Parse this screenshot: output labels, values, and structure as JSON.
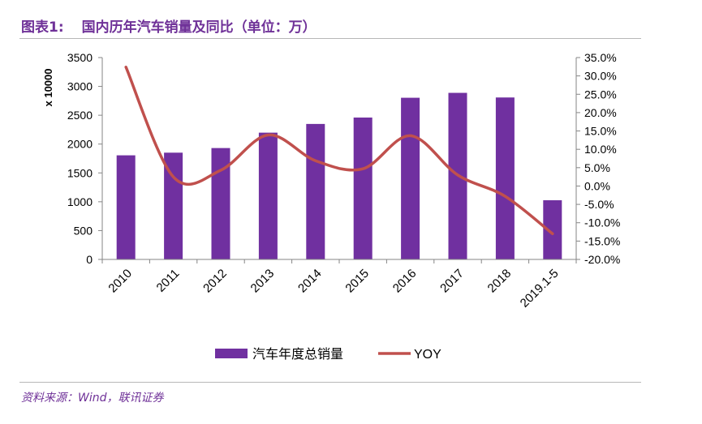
{
  "figure": {
    "title_prefix": "图表1:",
    "title_text": "国内历年汽车销量及同比（单位：万）",
    "source": "资料来源：Wind，联讯证券"
  },
  "chart_data": {
    "type": "bar+line",
    "categories": [
      "2010",
      "2011",
      "2012",
      "2013",
      "2014",
      "2015",
      "2016",
      "2017",
      "2018",
      "2019.1-5"
    ],
    "series": [
      {
        "name": "汽车年度总销量",
        "type": "bar",
        "axis": "left",
        "color": "#7030a0",
        "values": [
          1805,
          1851,
          1931,
          2198,
          2349,
          2460,
          2803,
          2888,
          2808,
          1026
        ]
      },
      {
        "name": "YOY",
        "type": "line",
        "axis": "right",
        "color": "#c0504d",
        "smooth": true,
        "values": [
          32.4,
          2.5,
          4.3,
          13.9,
          6.9,
          4.7,
          13.7,
          3.0,
          -2.8,
          -13.0
        ]
      }
    ],
    "y_left": {
      "label": "x 10000",
      "min": 0,
      "max": 3500,
      "ticks": [
        "0",
        "500",
        "1000",
        "1500",
        "2000",
        "2500",
        "3000",
        "3500"
      ]
    },
    "y_right": {
      "min": -20,
      "max": 35,
      "ticks": [
        "-20.0%",
        "-15.0%",
        "-10.0%",
        "-5.0%",
        "0.0%",
        "5.0%",
        "10.0%",
        "15.0%",
        "20.0%",
        "25.0%",
        "30.0%",
        "35.0%"
      ]
    },
    "grid": false,
    "legend": "bottom"
  }
}
